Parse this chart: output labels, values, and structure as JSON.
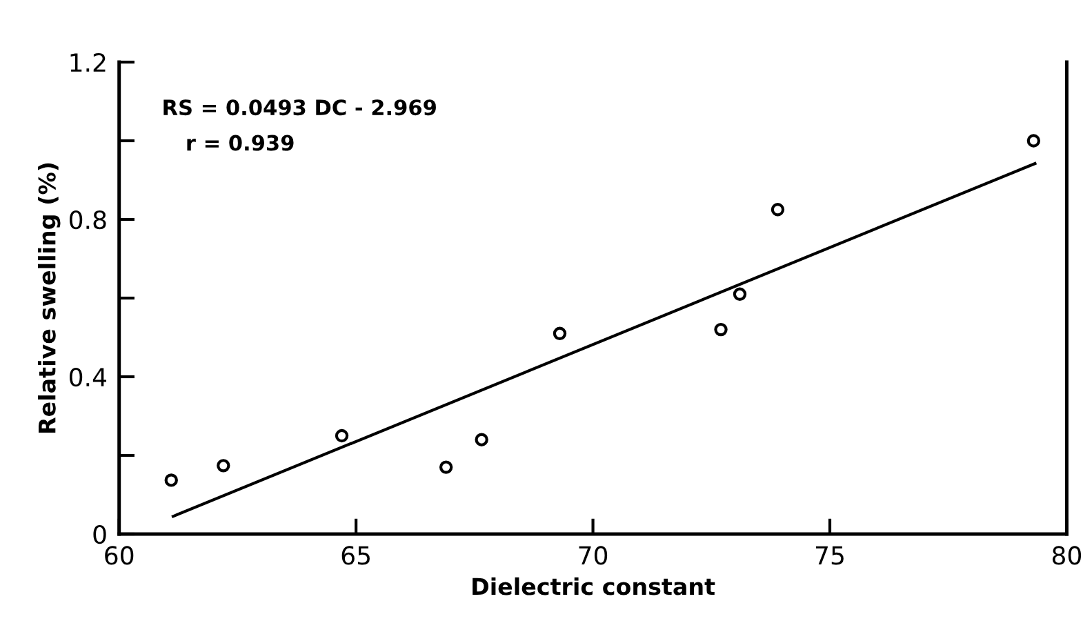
{
  "chart_data": {
    "type": "scatter",
    "xlabel": "Dielectric constant",
    "ylabel": "Relative swelling (%)",
    "annotations": [
      "RS = 0.0493 DC - 2.969",
      "r = 0.939"
    ],
    "xlim": [
      60,
      80
    ],
    "xticks": [
      60,
      65,
      70,
      75,
      80
    ],
    "ylim": [
      0,
      1.2
    ],
    "yticks": [
      0,
      {
        "value": 0.2,
        "label": null
      },
      0.4,
      {
        "value": 0.6,
        "label": null
      },
      0.8,
      {
        "value": 1.0,
        "label": null
      },
      1.2
    ],
    "grid": false,
    "legend": false,
    "series": [
      {
        "marker": "circle",
        "color": "#000000",
        "x": [
          61.1,
          62.2,
          64.7,
          66.9,
          67.65,
          69.3,
          72.7,
          73.1,
          73.9,
          79.3
        ],
        "values": [
          0.137,
          0.174,
          0.25,
          0.17,
          0.24,
          0.51,
          0.52,
          0.61,
          0.825,
          1.0
        ]
      },
      {
        "type": "line",
        "marker": "none",
        "line_style": "solid",
        "color": "#000000",
        "x": [
          61.14,
          79.33
        ],
        "values": [
          0.045,
          0.942
        ]
      }
    ]
  }
}
